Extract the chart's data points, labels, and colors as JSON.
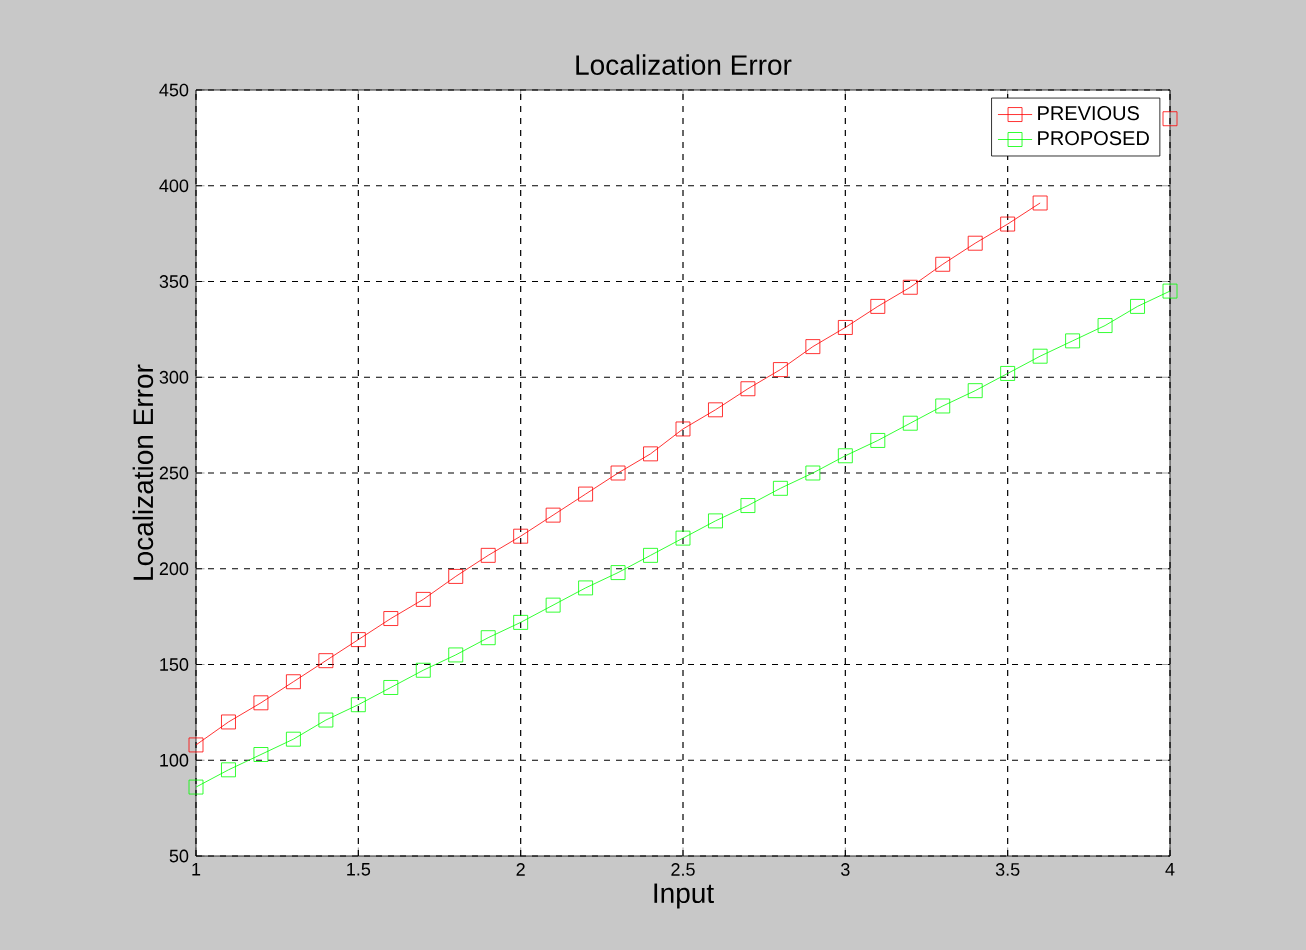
{
  "chart_data": {
    "type": "line",
    "title": "Localization Error",
    "xlabel": "Input",
    "ylabel": "Localization Error",
    "x": [
      1.0,
      1.1,
      1.2,
      1.3,
      1.4,
      1.5,
      1.6,
      1.7,
      1.8,
      1.9,
      2.0,
      2.1,
      2.2,
      2.3,
      2.4,
      2.5,
      2.6,
      2.7,
      2.8,
      2.9,
      3.0,
      3.1,
      3.2,
      3.3,
      3.4,
      3.5,
      3.6,
      3.7,
      3.8,
      3.9,
      4.0
    ],
    "series": [
      {
        "name": "PREVIOUS",
        "color": "#ff0000",
        "values": [
          108,
          120,
          130,
          141,
          152,
          163,
          174,
          184,
          196,
          207,
          217,
          228,
          239,
          250,
          260,
          273,
          283,
          294,
          304,
          316,
          326,
          337,
          347,
          359,
          370,
          380,
          391,
          null,
          null,
          null,
          435
        ]
      },
      {
        "name": "PROPOSED",
        "color": "#00ff00",
        "values": [
          86,
          95,
          103,
          111,
          121,
          129,
          138,
          147,
          155,
          164,
          172,
          181,
          190,
          198,
          207,
          216,
          225,
          233,
          242,
          250,
          259,
          267,
          276,
          285,
          293,
          302,
          311,
          319,
          327,
          337,
          345
        ]
      }
    ],
    "xlim": [
      1,
      4
    ],
    "xticks": [
      1,
      1.5,
      2,
      2.5,
      3,
      3.5,
      4
    ],
    "ylim": [
      50,
      450
    ],
    "yticks": [
      50,
      100,
      150,
      200,
      250,
      300,
      350,
      400,
      450
    ],
    "grid": true,
    "legend": "top right",
    "marker": "square",
    "line_style": "solid"
  }
}
